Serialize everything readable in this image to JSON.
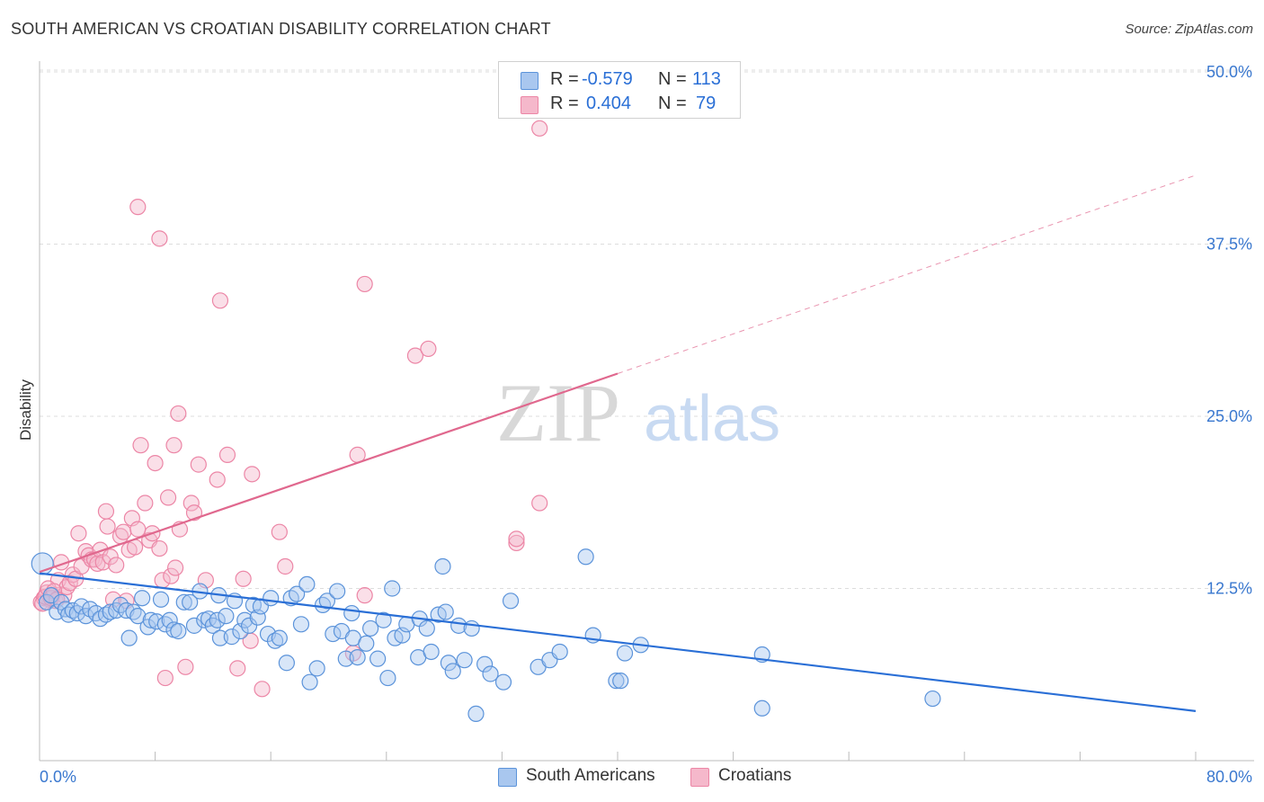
{
  "header": {
    "title": "SOUTH AMERICAN VS CROATIAN DISABILITY CORRELATION CHART",
    "source": "Source: ZipAtlas.com"
  },
  "legend_top": {
    "rows": [
      {
        "r_label": "R =",
        "r_value": "-0.579",
        "n_label": "N =",
        "n_value": "113",
        "color": "#a9c7ef"
      },
      {
        "r_label": "R =",
        "r_value": "0.404",
        "n_label": "N =",
        "n_value": "79",
        "color": "#f5b8cb"
      }
    ]
  },
  "legend_bottom": {
    "items": [
      {
        "label": "South Americans",
        "color": "#a9c7ef"
      },
      {
        "label": "Croatians",
        "color": "#f5b8cb"
      }
    ]
  },
  "colors": {
    "blue_fill": "#a9c7ef",
    "blue_stroke": "#5b93da",
    "blue_line": "#2a6fd6",
    "pink_fill": "#f5b8cb",
    "pink_stroke": "#ec86a6",
    "pink_line": "#e0688e",
    "grid": "#dddddd",
    "tick_label": "#3a78cf"
  },
  "watermark": {
    "part1": "ZIP",
    "part2": "atlas"
  },
  "chart_data": {
    "type": "scatter",
    "title": "SOUTH AMERICAN VS CROATIAN DISABILITY CORRELATION CHART",
    "xlabel": "",
    "ylabel": "Disability",
    "xlim": [
      0,
      80
    ],
    "ylim": [
      0,
      50
    ],
    "x_tick_labels": [
      "0.0%",
      "80.0%"
    ],
    "y_tick_labels": [
      "12.5%",
      "25.0%",
      "37.5%",
      "50.0%"
    ],
    "y_ticks": [
      12.5,
      25.0,
      37.5,
      50.0
    ],
    "grid": true,
    "legend_position": "top-center",
    "series": [
      {
        "name": "South Americans",
        "trend": {
          "x0": 0,
          "y0": 13.6,
          "x1": 80,
          "y1": 3.6,
          "solid_until": 80
        },
        "points": [
          [
            0.2,
            14.3
          ],
          [
            0.5,
            11.5
          ],
          [
            0.8,
            12.0
          ],
          [
            1.2,
            10.8
          ],
          [
            1.5,
            11.5
          ],
          [
            1.8,
            11.0
          ],
          [
            2.0,
            10.6
          ],
          [
            2.3,
            10.9
          ],
          [
            2.6,
            10.7
          ],
          [
            2.9,
            11.2
          ],
          [
            3.2,
            10.5
          ],
          [
            3.5,
            11.0
          ],
          [
            3.9,
            10.7
          ],
          [
            4.2,
            10.3
          ],
          [
            4.6,
            10.6
          ],
          [
            4.9,
            10.8
          ],
          [
            5.3,
            10.9
          ],
          [
            5.6,
            11.3
          ],
          [
            6.0,
            10.9
          ],
          [
            6.2,
            8.9
          ],
          [
            6.5,
            10.8
          ],
          [
            6.8,
            10.5
          ],
          [
            7.1,
            11.8
          ],
          [
            7.5,
            9.7
          ],
          [
            7.7,
            10.2
          ],
          [
            8.1,
            10.1
          ],
          [
            8.4,
            11.7
          ],
          [
            8.7,
            9.9
          ],
          [
            9.0,
            10.2
          ],
          [
            9.3,
            9.5
          ],
          [
            9.6,
            9.4
          ],
          [
            10.0,
            11.5
          ],
          [
            10.4,
            11.5
          ],
          [
            10.7,
            9.8
          ],
          [
            11.1,
            12.3
          ],
          [
            11.4,
            10.2
          ],
          [
            11.7,
            10.3
          ],
          [
            12.0,
            9.8
          ],
          [
            12.3,
            10.2
          ],
          [
            12.4,
            12.0
          ],
          [
            12.5,
            8.9
          ],
          [
            12.9,
            10.5
          ],
          [
            13.3,
            9.0
          ],
          [
            13.5,
            11.6
          ],
          [
            13.9,
            9.4
          ],
          [
            14.2,
            10.2
          ],
          [
            14.5,
            9.8
          ],
          [
            14.8,
            11.3
          ],
          [
            15.1,
            10.4
          ],
          [
            15.3,
            11.2
          ],
          [
            15.8,
            9.2
          ],
          [
            16.0,
            11.8
          ],
          [
            16.3,
            8.7
          ],
          [
            16.6,
            8.9
          ],
          [
            17.1,
            7.1
          ],
          [
            17.4,
            11.8
          ],
          [
            17.8,
            12.1
          ],
          [
            18.1,
            9.9
          ],
          [
            18.5,
            12.8
          ],
          [
            18.7,
            5.7
          ],
          [
            19.2,
            6.7
          ],
          [
            19.6,
            11.3
          ],
          [
            19.9,
            11.6
          ],
          [
            20.3,
            9.2
          ],
          [
            20.6,
            12.3
          ],
          [
            20.9,
            9.4
          ],
          [
            21.2,
            7.4
          ],
          [
            21.6,
            10.7
          ],
          [
            21.7,
            8.9
          ],
          [
            22.0,
            7.5
          ],
          [
            22.6,
            8.5
          ],
          [
            22.9,
            9.6
          ],
          [
            23.4,
            7.4
          ],
          [
            23.8,
            10.2
          ],
          [
            24.1,
            6.0
          ],
          [
            24.4,
            12.5
          ],
          [
            24.6,
            8.9
          ],
          [
            25.1,
            9.1
          ],
          [
            25.4,
            9.9
          ],
          [
            26.2,
            7.5
          ],
          [
            26.3,
            10.3
          ],
          [
            26.8,
            9.6
          ],
          [
            27.1,
            7.9
          ],
          [
            27.6,
            10.6
          ],
          [
            27.9,
            14.1
          ],
          [
            28.1,
            10.8
          ],
          [
            28.3,
            7.1
          ],
          [
            28.6,
            6.5
          ],
          [
            29.0,
            9.8
          ],
          [
            29.4,
            7.3
          ],
          [
            29.9,
            9.6
          ],
          [
            30.2,
            3.4
          ],
          [
            30.8,
            7.0
          ],
          [
            31.2,
            6.3
          ],
          [
            32.1,
            5.7
          ],
          [
            32.6,
            11.6
          ],
          [
            34.5,
            6.8
          ],
          [
            35.3,
            7.3
          ],
          [
            36.0,
            7.9
          ],
          [
            37.8,
            14.8
          ],
          [
            38.3,
            9.1
          ],
          [
            39.9,
            5.8
          ],
          [
            40.2,
            5.8
          ],
          [
            40.5,
            7.8
          ],
          [
            41.6,
            8.4
          ],
          [
            50.0,
            7.7
          ],
          [
            50.0,
            3.8
          ],
          [
            61.8,
            4.5
          ]
        ]
      },
      {
        "name": "Croatians",
        "trend": {
          "x0": 0,
          "y0": 13.7,
          "x1": 80,
          "y1": 42.5,
          "solid_until": 40
        },
        "points": [
          [
            0.1,
            11.5
          ],
          [
            0.3,
            11.8
          ],
          [
            0.5,
            12.2
          ],
          [
            0.7,
            11.7
          ],
          [
            0.9,
            12.0
          ],
          [
            1.1,
            11.6
          ],
          [
            1.3,
            13.1
          ],
          [
            1.5,
            14.4
          ],
          [
            1.7,
            12.0
          ],
          [
            1.9,
            12.6
          ],
          [
            2.1,
            12.9
          ],
          [
            2.3,
            13.5
          ],
          [
            2.5,
            13.2
          ],
          [
            2.7,
            16.5
          ],
          [
            2.9,
            14.1
          ],
          [
            3.2,
            15.2
          ],
          [
            3.4,
            14.9
          ],
          [
            3.6,
            14.6
          ],
          [
            3.8,
            14.6
          ],
          [
            4.0,
            14.3
          ],
          [
            4.2,
            15.3
          ],
          [
            4.4,
            14.4
          ],
          [
            4.6,
            18.1
          ],
          [
            4.7,
            17.0
          ],
          [
            4.9,
            14.8
          ],
          [
            5.1,
            11.7
          ],
          [
            5.3,
            14.2
          ],
          [
            5.6,
            16.3
          ],
          [
            5.8,
            16.6
          ],
          [
            6.0,
            11.6
          ],
          [
            6.2,
            15.3
          ],
          [
            6.4,
            17.6
          ],
          [
            6.6,
            15.5
          ],
          [
            6.8,
            16.8
          ],
          [
            7.0,
            22.9
          ],
          [
            7.3,
            18.7
          ],
          [
            7.6,
            16.0
          ],
          [
            7.8,
            16.5
          ],
          [
            8.0,
            21.6
          ],
          [
            8.3,
            15.4
          ],
          [
            8.5,
            13.1
          ],
          [
            8.7,
            6.0
          ],
          [
            8.9,
            19.1
          ],
          [
            9.1,
            13.4
          ],
          [
            9.3,
            22.9
          ],
          [
            9.4,
            14.0
          ],
          [
            9.6,
            25.2
          ],
          [
            9.7,
            16.8
          ],
          [
            10.1,
            6.8
          ],
          [
            10.5,
            18.7
          ],
          [
            10.7,
            18.0
          ],
          [
            11.0,
            21.5
          ],
          [
            11.5,
            13.1
          ],
          [
            12.3,
            20.4
          ],
          [
            12.5,
            33.4
          ],
          [
            13.0,
            22.2
          ],
          [
            13.7,
            6.7
          ],
          [
            14.1,
            13.2
          ],
          [
            14.6,
            8.7
          ],
          [
            14.7,
            20.8
          ],
          [
            15.4,
            5.2
          ],
          [
            16.6,
            16.6
          ],
          [
            17.0,
            14.1
          ],
          [
            21.7,
            7.8
          ],
          [
            22.0,
            22.2
          ],
          [
            22.5,
            34.6
          ],
          [
            22.5,
            12.0
          ],
          [
            26.0,
            29.4
          ],
          [
            26.9,
            29.9
          ],
          [
            33.0,
            15.8
          ],
          [
            33.0,
            16.1
          ],
          [
            34.6,
            18.7
          ],
          [
            34.6,
            45.9
          ],
          [
            0.2,
            11.4
          ],
          [
            0.4,
            11.9
          ],
          [
            0.6,
            12.5
          ],
          [
            0.8,
            11.8
          ],
          [
            1.0,
            12.3
          ],
          [
            1.2,
            11.7
          ]
        ],
        "extra_outliers": [
          [
            6.8,
            40.2
          ],
          [
            8.3,
            37.9
          ]
        ]
      }
    ]
  }
}
